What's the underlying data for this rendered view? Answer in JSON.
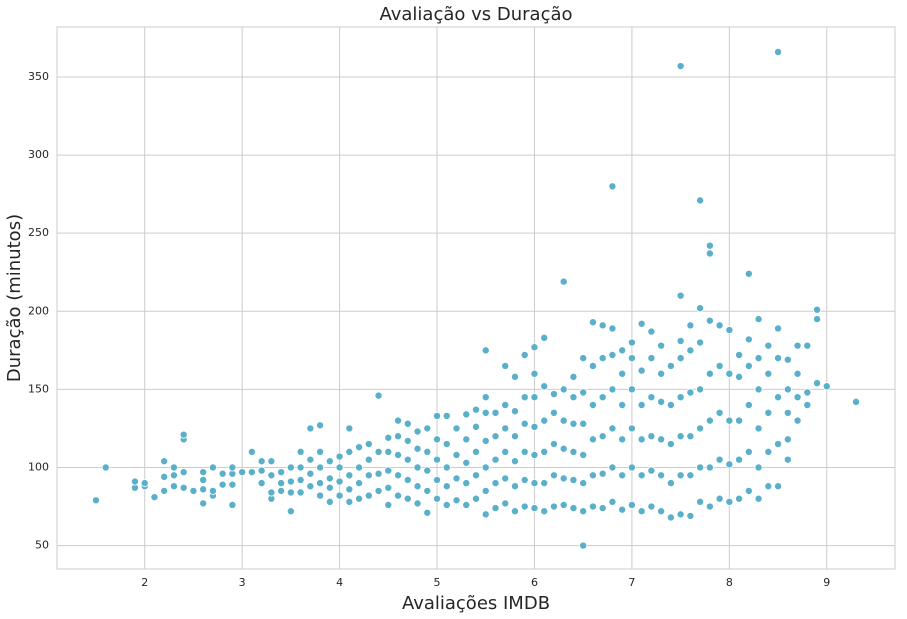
{
  "chart_data": {
    "type": "scatter",
    "title": "Avaliação vs Duração",
    "xlabel": "Avaliações IMDB",
    "ylabel": "Duração (minutos)",
    "color": "#5ab0cb",
    "grid": true,
    "xlim": [
      1.1,
      9.7
    ],
    "ylim": [
      35,
      382
    ],
    "xticks": [
      2,
      3,
      4,
      5,
      6,
      7,
      8,
      9
    ],
    "yticks": [
      50,
      100,
      150,
      200,
      250,
      300,
      350
    ],
    "x": [
      1.5,
      1.6,
      1.9,
      1.9,
      2.0,
      2.0,
      2.1,
      2.2,
      2.2,
      2.2,
      2.3,
      2.3,
      2.3,
      2.4,
      2.4,
      2.4,
      2.4,
      2.5,
      2.6,
      2.6,
      2.6,
      2.6,
      2.7,
      2.7,
      2.7,
      2.8,
      2.8,
      2.9,
      2.9,
      2.9,
      2.9,
      3.0,
      3.1,
      3.1,
      3.2,
      3.2,
      3.2,
      3.3,
      3.3,
      3.3,
      3.3,
      3.4,
      3.4,
      3.4,
      3.5,
      3.5,
      3.5,
      3.5,
      3.6,
      3.6,
      3.6,
      3.6,
      3.7,
      3.7,
      3.7,
      3.7,
      3.8,
      3.8,
      3.8,
      3.8,
      3.8,
      3.9,
      3.9,
      3.9,
      3.9,
      4.0,
      4.0,
      4.0,
      4.0,
      4.1,
      4.1,
      4.1,
      4.1,
      4.1,
      4.2,
      4.2,
      4.2,
      4.2,
      4.3,
      4.3,
      4.3,
      4.3,
      4.4,
      4.4,
      4.4,
      4.4,
      4.5,
      4.5,
      4.5,
      4.5,
      4.5,
      4.6,
      4.6,
      4.6,
      4.6,
      4.6,
      4.7,
      4.7,
      4.7,
      4.7,
      4.7,
      4.8,
      4.8,
      4.8,
      4.8,
      4.8,
      4.9,
      4.9,
      4.9,
      4.9,
      4.9,
      5.0,
      5.0,
      5.0,
      5.0,
      5.0,
      5.1,
      5.1,
      5.1,
      5.1,
      5.1,
      5.2,
      5.2,
      5.2,
      5.2,
      5.3,
      5.3,
      5.3,
      5.3,
      5.3,
      5.4,
      5.4,
      5.4,
      5.4,
      5.4,
      5.5,
      5.5,
      5.5,
      5.5,
      5.5,
      5.5,
      5.5,
      5.6,
      5.6,
      5.6,
      5.6,
      5.6,
      5.7,
      5.7,
      5.7,
      5.7,
      5.7,
      5.7,
      5.8,
      5.8,
      5.8,
      5.8,
      5.8,
      5.8,
      5.9,
      5.9,
      5.9,
      5.9,
      5.9,
      5.9,
      6.0,
      6.0,
      6.0,
      6.0,
      6.0,
      6.0,
      6.0,
      6.1,
      6.1,
      6.1,
      6.1,
      6.1,
      6.1,
      6.2,
      6.2,
      6.2,
      6.2,
      6.2,
      6.3,
      6.3,
      6.3,
      6.3,
      6.3,
      6.3,
      6.4,
      6.4,
      6.4,
      6.4,
      6.4,
      6.4,
      6.5,
      6.5,
      6.5,
      6.5,
      6.5,
      6.5,
      6.5,
      6.6,
      6.6,
      6.6,
      6.6,
      6.6,
      6.6,
      6.7,
      6.7,
      6.7,
      6.7,
      6.7,
      6.7,
      6.8,
      6.8,
      6.8,
      6.8,
      6.8,
      6.8,
      6.8,
      6.9,
      6.9,
      6.9,
      6.9,
      6.9,
      6.9,
      7.0,
      7.0,
      7.0,
      7.0,
      7.0,
      7.0,
      7.1,
      7.1,
      7.1,
      7.1,
      7.1,
      7.1,
      7.2,
      7.2,
      7.2,
      7.2,
      7.2,
      7.2,
      7.3,
      7.3,
      7.3,
      7.3,
      7.3,
      7.3,
      7.4,
      7.4,
      7.4,
      7.4,
      7.4,
      7.5,
      7.5,
      7.5,
      7.5,
      7.5,
      7.5,
      7.5,
      7.5,
      7.6,
      7.6,
      7.6,
      7.6,
      7.6,
      7.6,
      7.7,
      7.7,
      7.7,
      7.7,
      7.7,
      7.7,
      7.7,
      7.8,
      7.8,
      7.8,
      7.8,
      7.8,
      7.8,
      7.8,
      7.9,
      7.9,
      7.9,
      7.9,
      7.9,
      8.0,
      8.0,
      8.0,
      8.0,
      8.0,
      8.1,
      8.1,
      8.1,
      8.1,
      8.1,
      8.2,
      8.2,
      8.2,
      8.2,
      8.2,
      8.2,
      8.3,
      8.3,
      8.3,
      8.3,
      8.3,
      8.3,
      8.4,
      8.4,
      8.4,
      8.4,
      8.4,
      8.5,
      8.5,
      8.5,
      8.5,
      8.5,
      8.5,
      8.6,
      8.6,
      8.6,
      8.6,
      8.6,
      8.7,
      8.7,
      8.7,
      8.7,
      8.8,
      8.8,
      8.8,
      8.9,
      8.9,
      8.9,
      9.0,
      9.3
    ],
    "values": [
      79,
      100,
      87,
      91,
      88,
      90,
      81,
      85,
      94,
      104,
      88,
      95,
      100,
      87,
      97,
      118,
      121,
      85,
      77,
      86,
      92,
      97,
      82,
      85,
      100,
      89,
      96,
      76,
      89,
      96,
      100,
      97,
      97,
      110,
      90,
      98,
      104,
      80,
      84,
      95,
      104,
      85,
      90,
      97,
      72,
      84,
      91,
      100,
      84,
      92,
      100,
      110,
      88,
      96,
      105,
      125,
      82,
      90,
      100,
      110,
      127,
      78,
      87,
      93,
      104,
      82,
      91,
      100,
      107,
      78,
      86,
      95,
      110,
      125,
      80,
      90,
      100,
      113,
      82,
      95,
      105,
      115,
      85,
      96,
      110,
      146,
      76,
      87,
      98,
      110,
      119,
      82,
      95,
      108,
      120,
      130,
      80,
      92,
      105,
      117,
      128,
      77,
      88,
      100,
      112,
      123,
      71,
      85,
      98,
      110,
      125,
      80,
      92,
      105,
      118,
      133,
      76,
      88,
      100,
      115,
      133,
      79,
      93,
      108,
      125,
      76,
      90,
      103,
      118,
      134,
      80,
      95,
      110,
      126,
      137,
      70,
      85,
      100,
      117,
      135,
      145,
      175,
      74,
      90,
      105,
      120,
      135,
      77,
      93,
      110,
      125,
      140,
      165,
      72,
      88,
      104,
      120,
      136,
      158,
      75,
      92,
      110,
      128,
      145,
      172,
      74,
      90,
      108,
      126,
      145,
      160,
      177,
      72,
      90,
      110,
      130,
      152,
      183,
      75,
      95,
      115,
      135,
      147,
      76,
      93,
      112,
      130,
      150,
      219,
      74,
      92,
      110,
      128,
      145,
      158,
      50,
      72,
      90,
      108,
      128,
      148,
      170,
      75,
      95,
      118,
      140,
      165,
      193,
      74,
      96,
      120,
      145,
      170,
      191,
      78,
      100,
      125,
      150,
      172,
      189,
      280,
      73,
      95,
      118,
      140,
      160,
      175,
      76,
      100,
      125,
      150,
      170,
      180,
      72,
      95,
      118,
      140,
      162,
      192,
      75,
      98,
      120,
      145,
      170,
      187,
      72,
      95,
      118,
      142,
      160,
      178,
      68,
      90,
      115,
      140,
      165,
      70,
      95,
      120,
      145,
      170,
      181,
      210,
      357,
      69,
      95,
      120,
      148,
      175,
      191,
      78,
      100,
      125,
      150,
      180,
      202,
      271,
      75,
      100,
      130,
      160,
      194,
      237,
      242,
      80,
      105,
      135,
      165,
      191,
      78,
      102,
      130,
      160,
      188,
      80,
      105,
      130,
      158,
      172,
      85,
      110,
      140,
      165,
      182,
      224,
      80,
      100,
      125,
      150,
      170,
      195,
      88,
      110,
      135,
      160,
      178,
      88,
      115,
      145,
      170,
      189,
      366,
      105,
      118,
      135,
      150,
      169,
      130,
      145,
      160,
      178,
      140,
      148,
      178,
      154,
      195,
      201,
      152,
      142
    ]
  }
}
